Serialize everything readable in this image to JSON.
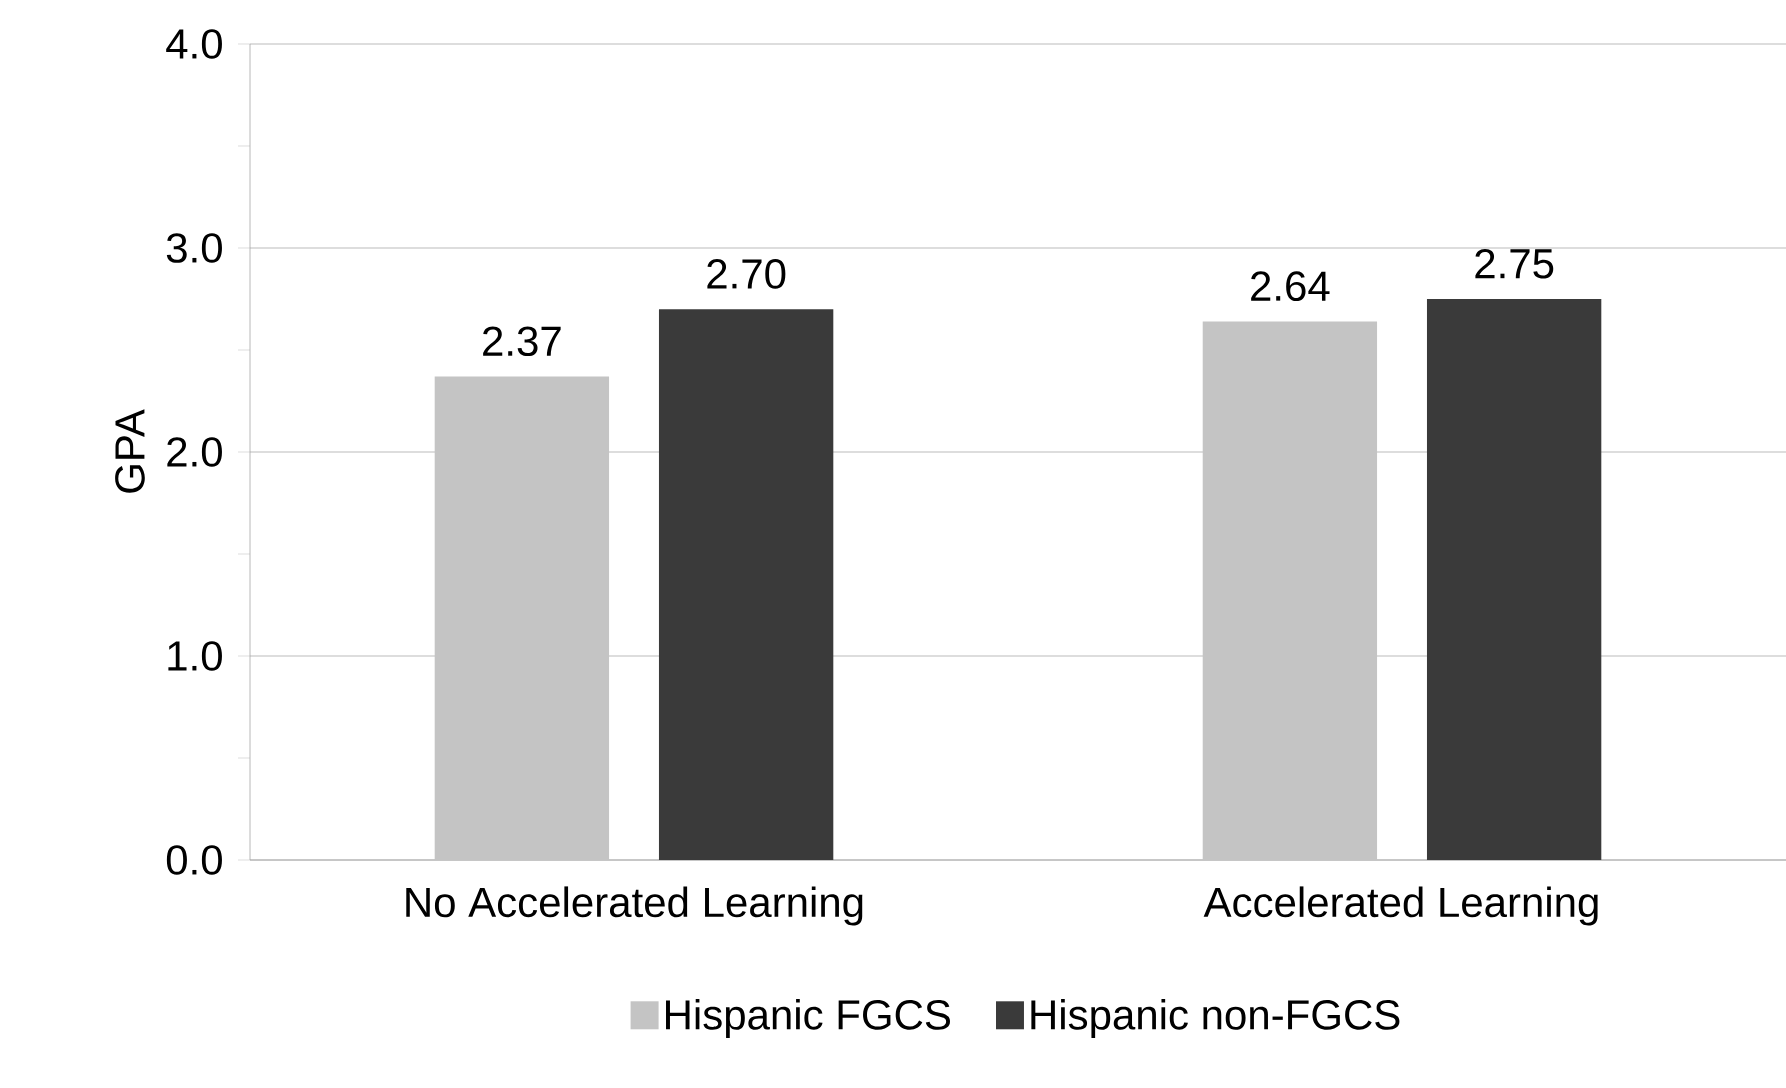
{
  "chart_data": {
    "type": "bar",
    "ylabel": "GPA",
    "categories": [
      "No Accelerated Learning",
      "Accelerated Learning"
    ],
    "series": [
      {
        "name": "Hispanic FGCS",
        "color": "#c4c4c4",
        "values": [
          2.37,
          2.64
        ],
        "value_labels": [
          "2.37",
          "2.64"
        ]
      },
      {
        "name": "Hispanic non-FGCS",
        "color": "#3a3a3a",
        "values": [
          2.7,
          2.75
        ],
        "value_labels": [
          "2.70",
          "2.75"
        ]
      }
    ],
    "ylim": [
      0,
      4
    ],
    "yticks": [
      {
        "value": 0,
        "label": "0.0"
      },
      {
        "value": 1,
        "label": "1.0"
      },
      {
        "value": 2,
        "label": "2.0"
      },
      {
        "value": 3,
        "label": "3.0"
      },
      {
        "value": 4,
        "label": "4.0"
      }
    ],
    "grid": "y",
    "legend": "bottom"
  }
}
